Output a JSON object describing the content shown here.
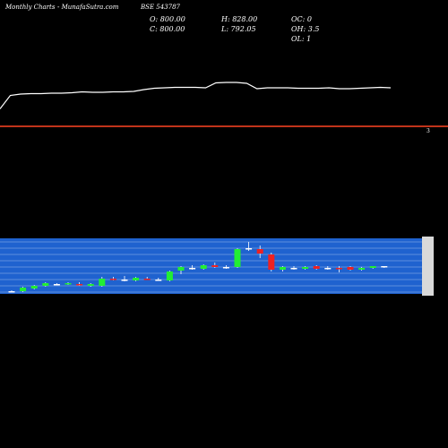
{
  "header": {
    "left": "Monthly Charts",
    "middle": "- MunafaSutra.com",
    "symbol": "BSE 543787"
  },
  "stats": {
    "open": "O: 800.00",
    "close": "C: 800.00",
    "high": "H: 828.00",
    "low": "L: 792.05",
    "oc": "OC: 0",
    "oh": "OH: 3.5",
    "ol": "OL: 1"
  },
  "indicator_label": "3",
  "colors": {
    "background": "#000000",
    "indicator_line": "#ffffff",
    "separator": "#ff4422",
    "price_panel": "#1f62cf",
    "up": "#22ee33",
    "down": "#ee2222",
    "neutral": "#ffffff"
  },
  "chart_data": [
    {
      "type": "line",
      "panel": "indicator",
      "title": "",
      "series": [
        {
          "values": [
            63,
            33,
            30,
            29,
            29,
            28,
            28,
            27,
            25,
            26,
            26,
            25,
            25,
            24,
            20,
            17,
            16,
            15,
            15,
            15,
            16,
            5,
            4,
            4,
            6,
            18,
            16,
            16,
            16,
            17,
            17,
            17,
            16,
            18,
            18,
            17,
            16,
            15,
            16
          ]
        }
      ],
      "ylim": [
        0,
        100
      ]
    },
    {
      "type": "candlestick",
      "panel": "price",
      "title": "",
      "candles": [
        {
          "o": 3,
          "h": 4,
          "l": 2,
          "c": 3,
          "d": "flat"
        },
        {
          "o": 3,
          "h": 8,
          "l": 2,
          "c": 7,
          "d": "up"
        },
        {
          "o": 6,
          "h": 10,
          "l": 5,
          "c": 9,
          "d": "up"
        },
        {
          "o": 9,
          "h": 13,
          "l": 8,
          "c": 12,
          "d": "up"
        },
        {
          "o": 11,
          "h": 12,
          "l": 10,
          "c": 11,
          "d": "flat"
        },
        {
          "o": 11,
          "h": 13,
          "l": 10,
          "c": 12,
          "d": "up"
        },
        {
          "o": 11,
          "h": 13,
          "l": 9,
          "c": 10,
          "d": "down"
        },
        {
          "o": 9,
          "h": 12,
          "l": 8,
          "c": 11,
          "d": "up"
        },
        {
          "o": 9,
          "h": 19,
          "l": 8,
          "c": 17,
          "d": "up"
        },
        {
          "o": 17,
          "h": 19,
          "l": 15,
          "c": 16,
          "d": "down"
        },
        {
          "o": 16,
          "h": 20,
          "l": 14,
          "c": 16,
          "d": "flat"
        },
        {
          "o": 15,
          "h": 19,
          "l": 14,
          "c": 18,
          "d": "up"
        },
        {
          "o": 17,
          "h": 19,
          "l": 16,
          "c": 16,
          "d": "down"
        },
        {
          "o": 16,
          "h": 18,
          "l": 15,
          "c": 16,
          "d": "flat"
        },
        {
          "o": 15,
          "h": 26,
          "l": 14,
          "c": 25,
          "d": "up"
        },
        {
          "o": 26,
          "h": 31,
          "l": 22,
          "c": 30,
          "d": "up"
        },
        {
          "o": 29,
          "h": 32,
          "l": 27,
          "c": 29,
          "d": "flat"
        },
        {
          "o": 28,
          "h": 33,
          "l": 27,
          "c": 32,
          "d": "up"
        },
        {
          "o": 32,
          "h": 35,
          "l": 29,
          "c": 30,
          "d": "down"
        },
        {
          "o": 30,
          "h": 32,
          "l": 28,
          "c": 30,
          "d": "flat"
        },
        {
          "o": 30,
          "h": 51,
          "l": 29,
          "c": 50,
          "d": "up"
        },
        {
          "o": 51,
          "h": 58,
          "l": 48,
          "c": 51,
          "d": "flat"
        },
        {
          "o": 50,
          "h": 54,
          "l": 40,
          "c": 45,
          "d": "down"
        },
        {
          "o": 44,
          "h": 46,
          "l": 25,
          "c": 27,
          "d": "down"
        },
        {
          "o": 27,
          "h": 31,
          "l": 25,
          "c": 30,
          "d": "up"
        },
        {
          "o": 29,
          "h": 31,
          "l": 27,
          "c": 29,
          "d": "flat"
        },
        {
          "o": 28,
          "h": 31,
          "l": 27,
          "c": 30,
          "d": "up"
        },
        {
          "o": 31,
          "h": 32,
          "l": 27,
          "c": 28,
          "d": "down"
        },
        {
          "o": 29,
          "h": 31,
          "l": 27,
          "c": 29,
          "d": "flat"
        },
        {
          "o": 29,
          "h": 31,
          "l": 24,
          "c": 28,
          "d": "down"
        },
        {
          "o": 30,
          "h": 31,
          "l": 26,
          "c": 27,
          "d": "down"
        },
        {
          "o": 27,
          "h": 30,
          "l": 26,
          "c": 29,
          "d": "up"
        },
        {
          "o": 29,
          "h": 31,
          "l": 28,
          "c": 31,
          "d": "up"
        },
        {
          "o": 31,
          "h": 31,
          "l": 29,
          "c": 31,
          "d": "flat"
        }
      ],
      "ylim": [
        0,
        62
      ]
    }
  ]
}
